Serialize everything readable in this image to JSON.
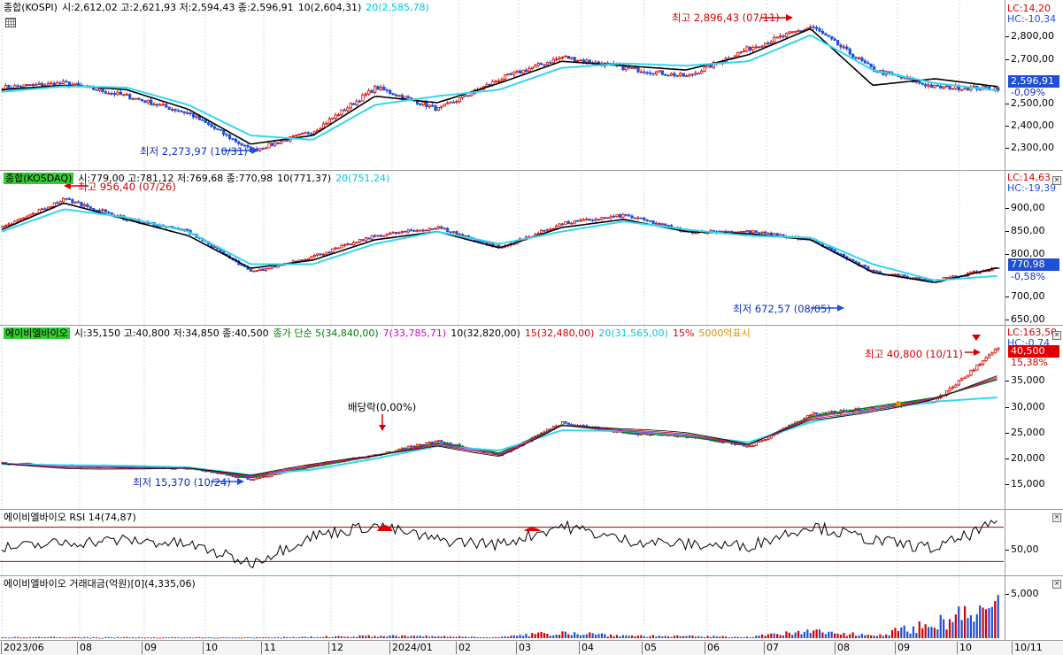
{
  "kospi": {
    "header": {
      "name": "종합(KOSPI)",
      "ohlc": "시:2,612,02 고:2,621,93 저:2,594,43 종:2,596,91",
      "ma10": "10(2,604,31)",
      "ma20": "20(2,585,78)"
    },
    "lc": "LC:14,20",
    "hc": "HC:-10,34",
    "price": "2,596,91",
    "change": "-0,09%",
    "ticks": [
      "2,800,00",
      "2,700,00",
      "2,500,00",
      "2,400,00",
      "2,300,00"
    ],
    "high_note": "최고 2,896,43 (07/11)",
    "low_note": "최저 2,273,97 (10/31)",
    "colors": {
      "up": "#d40000",
      "down": "#1f4fd6",
      "ma10": "#000000",
      "ma20": "#33d6f0"
    }
  },
  "kosdaq": {
    "header": {
      "name": "종합(KOSDAQ)",
      "ohlc": "시:779,00 고:781,12 저:769,68 종:770,98",
      "ma10": "10(771,37)",
      "ma20": "20(751,24)"
    },
    "lc": "LC:14,63",
    "hc": "HC:-19,39",
    "price": "770,98",
    "change": "-0,58%",
    "ticks": [
      "900,00",
      "850,00",
      "800,00",
      "750,00",
      "700,00",
      "650,00"
    ],
    "high_note": "최고 956,40 (07/26)",
    "low_note": "최저 672,57 (08/05)"
  },
  "stock": {
    "header": {
      "name": "에이비엘바이오",
      "ohlc": "시:35,150 고:40,800 저:34,850 종:40,500",
      "ma_label": "종가 단순 5(34,840,00)",
      "ma7": "7(33,785,71)",
      "ma10": "10(32,820,00)",
      "ma15": "15(32,480,00)",
      "ma20": "20(31,565,00)",
      "pct": "15%",
      "mark": "5000억표시"
    },
    "lc": "LC:163,50",
    "hc": "HC:-0,74",
    "price": "40,500",
    "change": "15,38%",
    "ticks": [
      "35,000",
      "30,000",
      "25,000",
      "20,000",
      "15,000"
    ],
    "high_note": "최고 40,800 (10/11)",
    "low_note": "최저 15,370 (10/24)",
    "dividend_note": "배당락(0,00%)"
  },
  "rsi": {
    "header": "에이비엘바이오 RSI 14(74,87)",
    "tick": "50,00"
  },
  "volume": {
    "header": "에이비엘바이오 거래대금(억원)[0](4,335,06)",
    "tick": "5,000"
  },
  "xaxis": {
    "labels": [
      "2023/06",
      "08",
      "09",
      "10",
      "11",
      "12",
      "2024/01",
      "02",
      "03",
      "04",
      "05",
      "06",
      "07",
      "08",
      "09",
      "10"
    ],
    "cursor_date": "10/11"
  },
  "chart_data": [
    {
      "type": "candlestick",
      "title": "종합(KOSPI)",
      "x": [
        "2023/06",
        "07",
        "08",
        "09",
        "10",
        "11",
        "12",
        "2024/01",
        "02",
        "03",
        "04",
        "05",
        "06",
        "07",
        "08",
        "09",
        "10"
      ],
      "close": [
        2600,
        2620,
        2560,
        2480,
        2310,
        2400,
        2600,
        2500,
        2640,
        2740,
        2690,
        2650,
        2780,
        2880,
        2680,
        2600,
        2596.91
      ],
      "series": [
        {
          "name": "10",
          "values": [
            2590,
            2610,
            2590,
            2500,
            2340,
            2380,
            2560,
            2530,
            2620,
            2720,
            2700,
            2680,
            2750,
            2870,
            2610,
            2640,
            2604.31
          ]
        },
        {
          "name": "20",
          "values": [
            2580,
            2605,
            2600,
            2520,
            2380,
            2360,
            2520,
            2560,
            2590,
            2690,
            2710,
            2700,
            2720,
            2840,
            2680,
            2620,
            2585.78
          ]
        }
      ],
      "ylim": [
        2250,
        2920
      ]
    },
    {
      "type": "candlestick",
      "title": "종합(KOSDAQ)",
      "x": [
        "2023/06",
        "07",
        "08",
        "09",
        "10",
        "11",
        "12",
        "2024/01",
        "02",
        "03",
        "04",
        "05",
        "06",
        "07",
        "08",
        "09",
        "10"
      ],
      "close": [
        870,
        940,
        890,
        860,
        760,
        800,
        850,
        870,
        820,
        880,
        900,
        860,
        860,
        840,
        760,
        740,
        770.98
      ],
      "series": [
        {
          "name": "10",
          "values": [
            865,
            930,
            890,
            850,
            770,
            790,
            840,
            860,
            820,
            870,
            890,
            860,
            855,
            840,
            760,
            735,
            771.37
          ]
        },
        {
          "name": "20",
          "values": [
            860,
            915,
            895,
            860,
            780,
            780,
            830,
            860,
            830,
            860,
            885,
            865,
            850,
            845,
            780,
            740,
            751.24
          ]
        }
      ],
      "ylim": [
        640,
        970
      ]
    },
    {
      "type": "candlestick",
      "title": "에이비엘바이오",
      "x": [
        "2023/06",
        "07",
        "08",
        "09",
        "10",
        "11",
        "12",
        "2024/01",
        "02",
        "03",
        "04",
        "05",
        "06",
        "07",
        "08",
        "09",
        "10"
      ],
      "close": [
        19500,
        19000,
        18800,
        18600,
        16500,
        19000,
        21000,
        23500,
        21000,
        27000,
        25000,
        24500,
        22500,
        28500,
        29500,
        31000,
        40500
      ],
      "series": [
        {
          "name": "5",
          "values": [
            19400,
            19000,
            18900,
            18600,
            16800,
            18800,
            20800,
            23200,
            21300,
            26500,
            25200,
            24400,
            22800,
            28000,
            29800,
            31500,
            34840
          ]
        },
        {
          "name": "20",
          "values": [
            19300,
            19100,
            19000,
            18700,
            17300,
            18300,
            20300,
            22600,
            21800,
            25500,
            25400,
            24600,
            23300,
            27000,
            29300,
            30800,
            31565
          ]
        }
      ],
      "ylim": [
        13000,
        41500
      ]
    },
    {
      "type": "line",
      "title": "에이비엘바이오 RSI 14",
      "x": [
        "2023/06",
        "07",
        "08",
        "09",
        "10",
        "11",
        "12",
        "2024/01",
        "02",
        "03",
        "04",
        "05",
        "06",
        "07",
        "08",
        "09",
        "10"
      ],
      "values": [
        45,
        52,
        55,
        50,
        28,
        60,
        72,
        55,
        50,
        72,
        55,
        50,
        48,
        72,
        55,
        45,
        74.87
      ],
      "ylim": [
        20,
        80
      ]
    },
    {
      "type": "bar",
      "title": "에이비엘바이오 거래대금(억원)",
      "x": [
        "2023/06",
        "07",
        "08",
        "09",
        "10",
        "11",
        "12",
        "2024/01",
        "02",
        "03",
        "04",
        "05",
        "06",
        "07",
        "08",
        "09",
        "10"
      ],
      "values": [
        150,
        120,
        110,
        100,
        90,
        180,
        300,
        250,
        150,
        800,
        350,
        250,
        200,
        900,
        400,
        2000,
        4335.06
      ],
      "ylim": [
        0,
        6000
      ]
    }
  ]
}
